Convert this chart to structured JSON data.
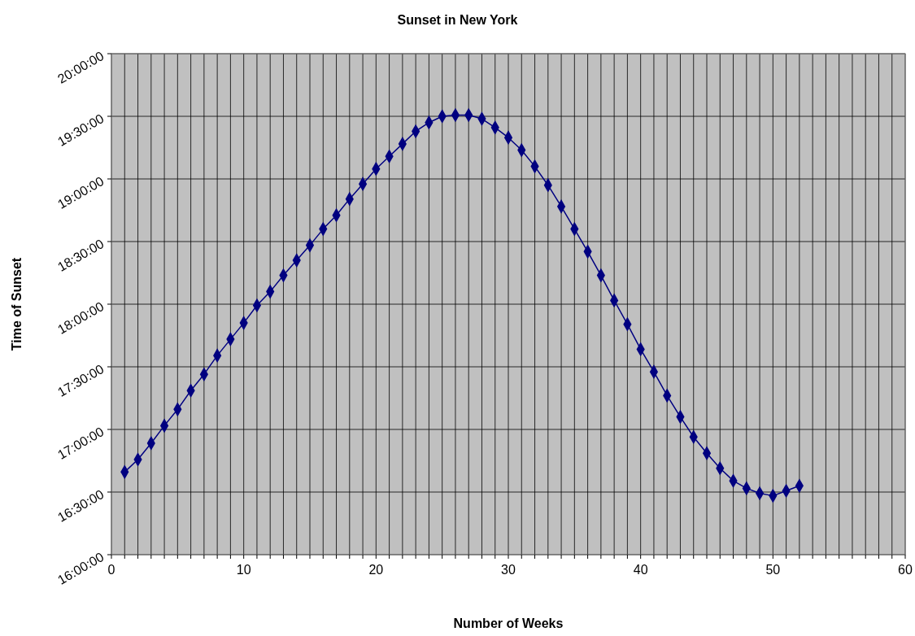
{
  "chart_data": {
    "type": "line",
    "title": "Sunset in New York",
    "xlabel": "Number of Weeks",
    "ylabel": "Time of Sunset",
    "x": [
      1,
      2,
      3,
      4,
      5,
      6,
      7,
      8,
      9,
      10,
      11,
      12,
      13,
      14,
      15,
      16,
      17,
      18,
      19,
      20,
      21,
      22,
      23,
      24,
      25,
      26,
      27,
      28,
      29,
      30,
      31,
      32,
      33,
      34,
      35,
      36,
      37,
      38,
      39,
      40,
      41,
      42,
      43,
      44,
      45,
      46,
      47,
      48,
      49,
      50,
      51,
      52
    ],
    "series": [
      {
        "color": "#000080",
        "values": [
          16.66,
          16.76,
          16.89,
          17.03,
          17.16,
          17.31,
          17.44,
          17.59,
          17.72,
          17.85,
          17.99,
          18.1,
          18.23,
          18.35,
          18.47,
          18.6,
          18.71,
          18.84,
          18.96,
          19.08,
          19.18,
          19.28,
          19.38,
          19.45,
          19.5,
          19.51,
          19.51,
          19.48,
          19.41,
          19.33,
          19.23,
          19.1,
          18.95,
          18.78,
          18.6,
          18.42,
          18.23,
          18.03,
          17.84,
          17.64,
          17.46,
          17.27,
          17.1,
          16.94,
          16.81,
          16.69,
          16.59,
          16.53,
          16.49,
          16.47,
          16.51,
          16.55
        ]
      }
    ],
    "xlim": [
      0,
      60
    ],
    "xticks": [
      0,
      {
        "value": 1,
        "label": null
      },
      {
        "value": 2,
        "label": null
      },
      {
        "value": 3,
        "label": null
      },
      {
        "value": 4,
        "label": null
      },
      {
        "value": 5,
        "label": null
      },
      {
        "value": 6,
        "label": null
      },
      {
        "value": 7,
        "label": null
      },
      {
        "value": 8,
        "label": null
      },
      {
        "value": 9,
        "label": null
      },
      10,
      {
        "value": 11,
        "label": null
      },
      {
        "value": 12,
        "label": null
      },
      {
        "value": 13,
        "label": null
      },
      {
        "value": 14,
        "label": null
      },
      {
        "value": 15,
        "label": null
      },
      {
        "value": 16,
        "label": null
      },
      {
        "value": 17,
        "label": null
      },
      {
        "value": 18,
        "label": null
      },
      {
        "value": 19,
        "label": null
      },
      20,
      {
        "value": 21,
        "label": null
      },
      {
        "value": 22,
        "label": null
      },
      {
        "value": 23,
        "label": null
      },
      {
        "value": 24,
        "label": null
      },
      {
        "value": 25,
        "label": null
      },
      {
        "value": 26,
        "label": null
      },
      {
        "value": 27,
        "label": null
      },
      {
        "value": 28,
        "label": null
      },
      {
        "value": 29,
        "label": null
      },
      30,
      {
        "value": 31,
        "label": null
      },
      {
        "value": 32,
        "label": null
      },
      {
        "value": 33,
        "label": null
      },
      {
        "value": 34,
        "label": null
      },
      {
        "value": 35,
        "label": null
      },
      {
        "value": 36,
        "label": null
      },
      {
        "value": 37,
        "label": null
      },
      {
        "value": 38,
        "label": null
      },
      {
        "value": 39,
        "label": null
      },
      40,
      {
        "value": 41,
        "label": null
      },
      {
        "value": 42,
        "label": null
      },
      {
        "value": 43,
        "label": null
      },
      {
        "value": 44,
        "label": null
      },
      {
        "value": 45,
        "label": null
      },
      {
        "value": 46,
        "label": null
      },
      {
        "value": 47,
        "label": null
      },
      {
        "value": 48,
        "label": null
      },
      {
        "value": 49,
        "label": null
      },
      50,
      {
        "value": 51,
        "label": null
      },
      {
        "value": 52,
        "label": null
      },
      {
        "value": 53,
        "label": null
      },
      {
        "value": 54,
        "label": null
      },
      {
        "value": 55,
        "label": null
      },
      {
        "value": 56,
        "label": null
      },
      {
        "value": 57,
        "label": null
      },
      {
        "value": 58,
        "label": null
      },
      {
        "value": 59,
        "label": null
      },
      60
    ],
    "ylim": [
      16,
      20
    ],
    "yticks": [
      {
        "value": 16,
        "label": "16:00:00"
      },
      {
        "value": 16.5,
        "label": "16:30:00"
      },
      {
        "value": 17,
        "label": "17:00:00"
      },
      {
        "value": 17.5,
        "label": "17:30:00"
      },
      {
        "value": 18,
        "label": "18:00:00"
      },
      {
        "value": 18.5,
        "label": "18:30:00"
      },
      {
        "value": 19,
        "label": "19:00:00"
      },
      {
        "value": 19.5,
        "label": "19:30:00"
      },
      {
        "value": 20,
        "label": "20:00:00"
      }
    ],
    "grid": true,
    "marker": "diamond",
    "line_style": "solid"
  }
}
